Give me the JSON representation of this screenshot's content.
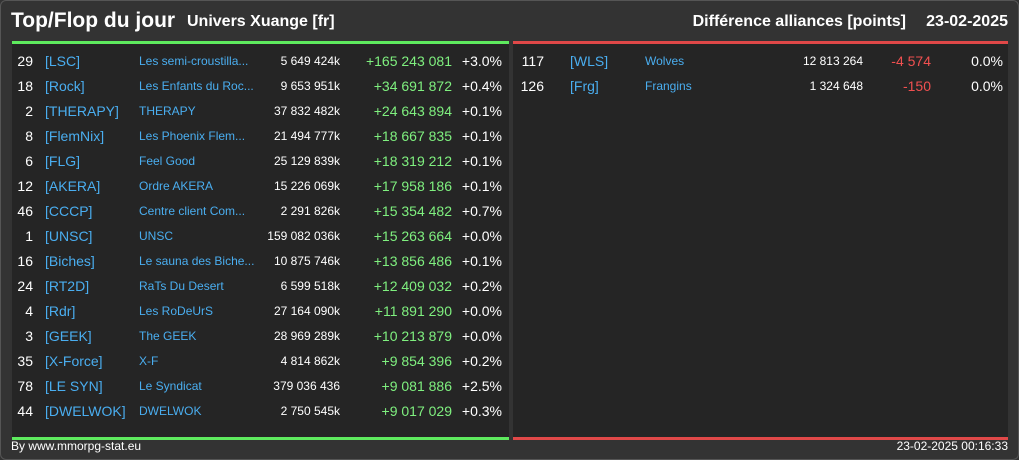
{
  "header": {
    "title": "Top/Flop du jour",
    "subtitle": "Univers Xuange [fr]",
    "right_title": "Différence alliances [points]",
    "date": "23-02-2025"
  },
  "top": [
    {
      "rank": "29",
      "tag": "[LSC]",
      "name": "Les semi-croustilla...",
      "points": "5 649 424k",
      "diff": "+165 243 081",
      "pct": "+3.0%"
    },
    {
      "rank": "18",
      "tag": "[Rock]",
      "name": "Les Enfants du Roc...",
      "points": "9 653 951k",
      "diff": "+34 691 872",
      "pct": "+0.4%"
    },
    {
      "rank": "2",
      "tag": "[THERAPY]",
      "name": "THERAPY",
      "points": "37 832 482k",
      "diff": "+24 643 894",
      "pct": "+0.1%"
    },
    {
      "rank": "8",
      "tag": "[FlemNix]",
      "name": "Les Phoenix Flem...",
      "points": "21 494 777k",
      "diff": "+18 667 835",
      "pct": "+0.1%"
    },
    {
      "rank": "6",
      "tag": "[FLG]",
      "name": "Feel Good",
      "points": "25 129 839k",
      "diff": "+18 319 212",
      "pct": "+0.1%"
    },
    {
      "rank": "12",
      "tag": "[AKERA]",
      "name": "Ordre AKERA",
      "points": "15 226 069k",
      "diff": "+17 958 186",
      "pct": "+0.1%"
    },
    {
      "rank": "46",
      "tag": "[CCCP]",
      "name": "Centre client Com...",
      "points": "2 291 826k",
      "diff": "+15 354 482",
      "pct": "+0.7%"
    },
    {
      "rank": "1",
      "tag": "[UNSC]",
      "name": "UNSC",
      "points": "159 082 036k",
      "diff": "+15 263 664",
      "pct": "+0.0%"
    },
    {
      "rank": "16",
      "tag": "[Biches]",
      "name": "Le sauna des Biche...",
      "points": "10 875 746k",
      "diff": "+13 856 486",
      "pct": "+0.1%"
    },
    {
      "rank": "24",
      "tag": "[RT2D]",
      "name": "RaTs Du Desert",
      "points": "6 599 518k",
      "diff": "+12 409 032",
      "pct": "+0.2%"
    },
    {
      "rank": "4",
      "tag": "[Rdr]",
      "name": "Les RoDeUrS",
      "points": "27 164 090k",
      "diff": "+11 891 290",
      "pct": "+0.0%"
    },
    {
      "rank": "3",
      "tag": "[GEEK]",
      "name": "The GEEK",
      "points": "28 969 289k",
      "diff": "+10 213 879",
      "pct": "+0.0%"
    },
    {
      "rank": "35",
      "tag": "[X-Force]",
      "name": "X-F",
      "points": "4 814 862k",
      "diff": "+9 854 396",
      "pct": "+0.2%"
    },
    {
      "rank": "78",
      "tag": "[LE SYN]",
      "name": "Le Syndicat",
      "points": "379 036 436",
      "diff": "+9 081 886",
      "pct": "+2.5%"
    },
    {
      "rank": "44",
      "tag": "[DWELWOK]",
      "name": "DWELWOK",
      "points": "2 750 545k",
      "diff": "+9 017 029",
      "pct": "+0.3%"
    }
  ],
  "flop": [
    {
      "rank": "117",
      "tag": "[WLS]",
      "name": "Wolves",
      "points": "12 813 264",
      "diff": "-4 574",
      "pct": "0.0%"
    },
    {
      "rank": "126",
      "tag": "[Frg]",
      "name": "Frangins",
      "points": "1 324 648",
      "diff": "-150",
      "pct": "0.0%"
    }
  ],
  "footer": {
    "left": "By www.mmorpg-stat.eu",
    "right": "23-02-2025 00:16:33"
  },
  "colors": {
    "background": "#333333",
    "panel": "#252525",
    "top_accent": "#5eea5e",
    "flop_accent": "#e04848",
    "link": "#4aaef0"
  }
}
